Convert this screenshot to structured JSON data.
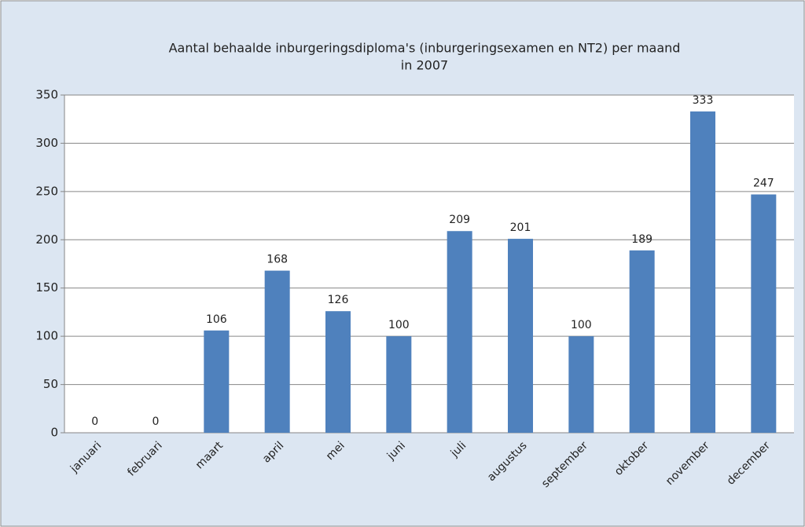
{
  "chart_data": {
    "type": "bar",
    "title": [
      "Aantal behaalde inburgeringsdiploma's (inburgeringsexamen en NT2) per maand",
      "in 2007"
    ],
    "categories": [
      "januari",
      "februari",
      "maart",
      "april",
      "mei",
      "juni",
      "juli",
      "augustus",
      "september",
      "oktober",
      "november",
      "december"
    ],
    "values": [
      0,
      0,
      106,
      168,
      126,
      100,
      209,
      201,
      100,
      189,
      333,
      247
    ],
    "color": "#4f81bd",
    "ylim": [
      0,
      350
    ],
    "yticks": [
      0,
      50,
      100,
      150,
      200,
      250,
      300,
      350
    ],
    "grid": true
  }
}
